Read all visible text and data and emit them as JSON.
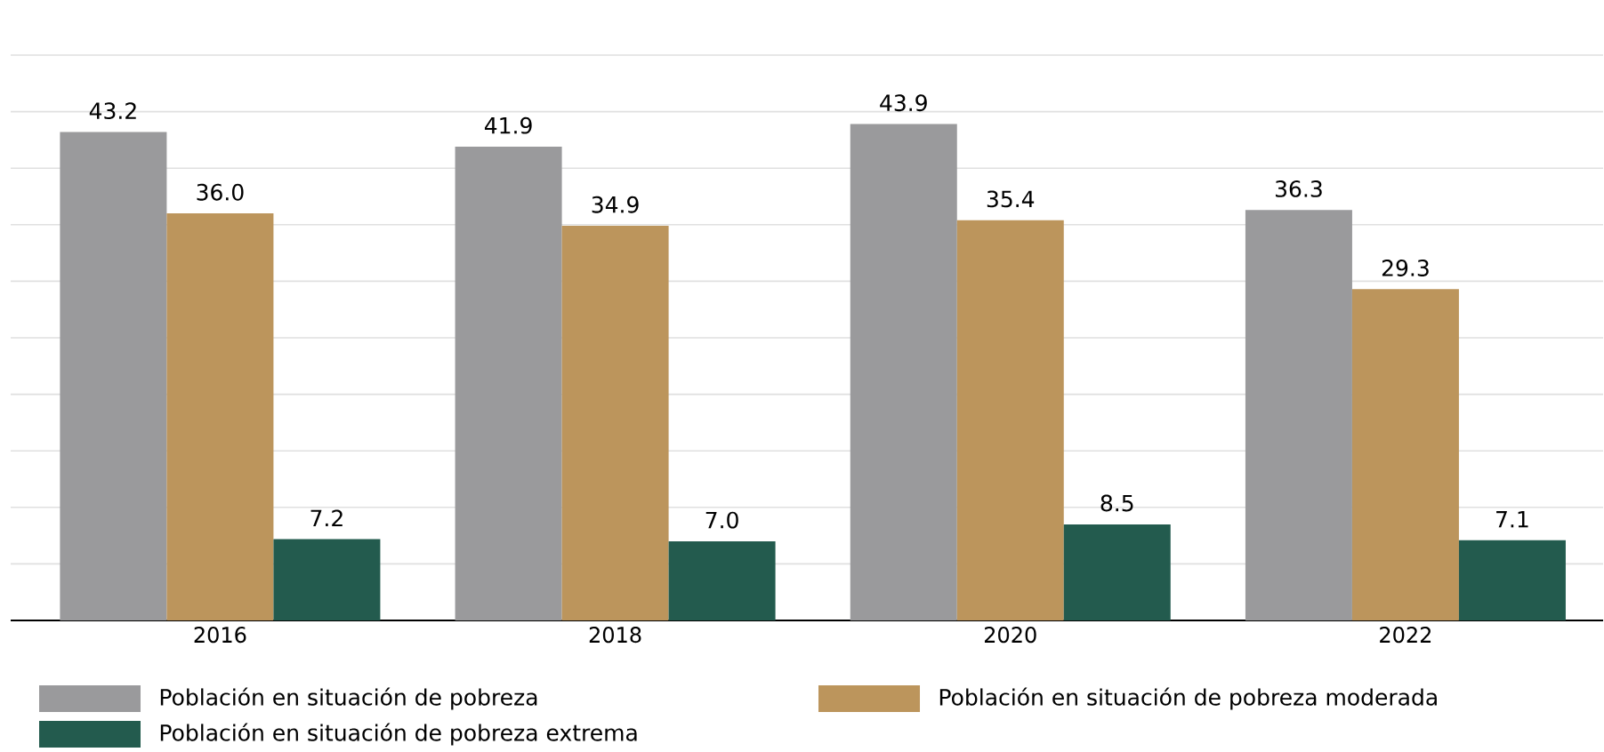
{
  "chart_data": {
    "type": "bar",
    "categories": [
      "2016",
      "2018",
      "2020",
      "2022"
    ],
    "series": [
      {
        "name": "Población en situación de pobreza",
        "color": "#9a9a9c",
        "values": [
          43.2,
          41.9,
          43.9,
          36.3
        ],
        "value_labels": [
          "43.2",
          "41.9",
          "43.9",
          "36.3"
        ]
      },
      {
        "name": "Población en situación de pobreza moderada",
        "color": "#bc955c",
        "values": [
          36.0,
          34.9,
          35.4,
          29.3
        ],
        "value_labels": [
          "36.0",
          "34.9",
          "35.4",
          "29.3"
        ]
      },
      {
        "name": "Población en situación de pobreza extrema",
        "color": "#235b4e",
        "values": [
          7.2,
          7.0,
          8.5,
          7.1
        ],
        "value_labels": [
          "7.2",
          "7.0",
          "8.5",
          "7.1"
        ]
      }
    ],
    "grid": "y",
    "tick_labels": "x",
    "legend": "bottom"
  }
}
